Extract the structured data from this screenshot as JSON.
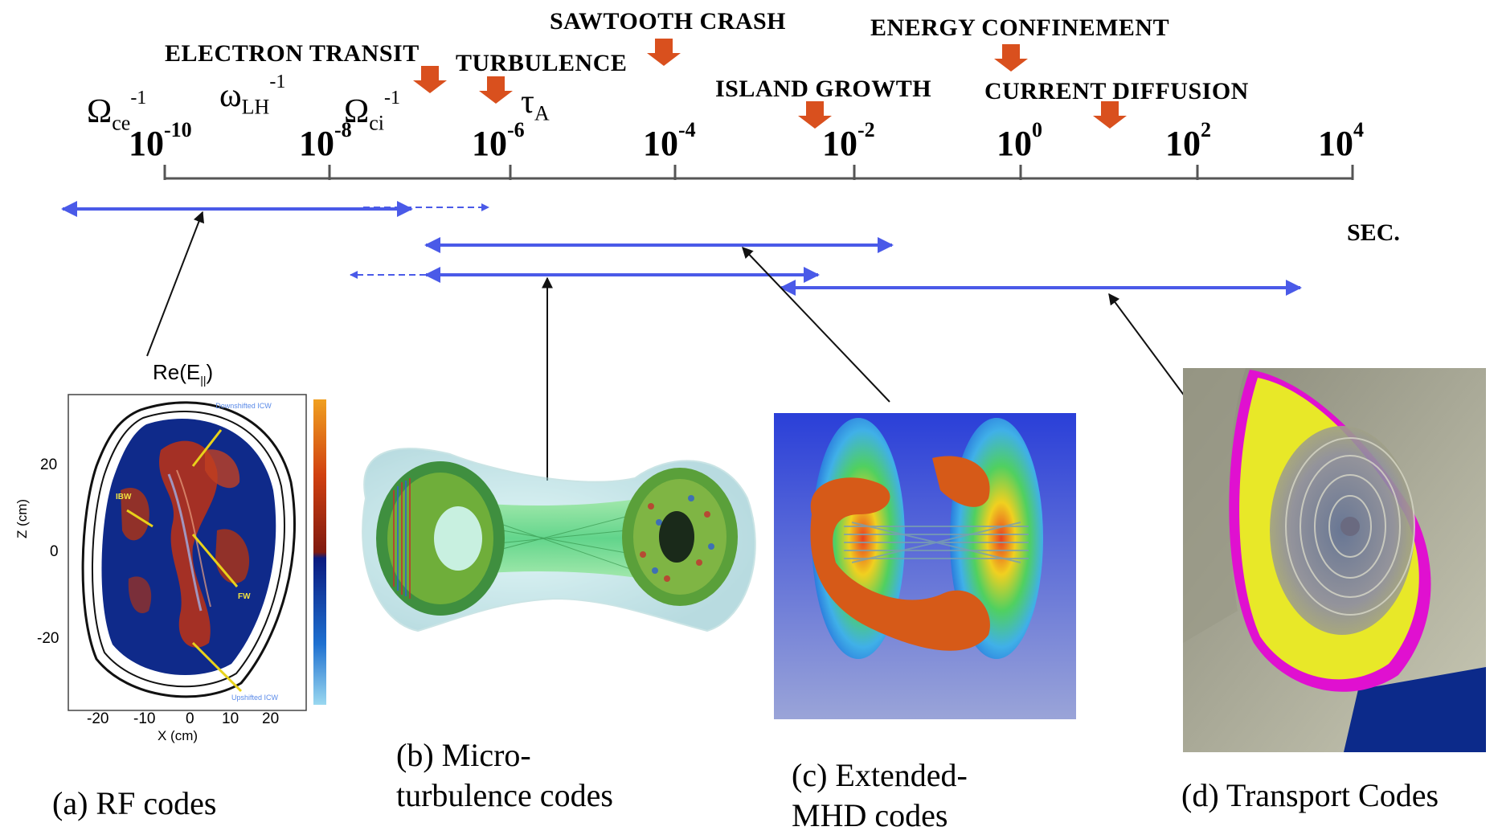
{
  "events": [
    {
      "id": "sawtooth",
      "label": "SAWTOOTH CRASH"
    },
    {
      "id": "energy",
      "label": "ENERGY CONFINEMENT"
    },
    {
      "id": "electron",
      "label": "ELECTRON TRANSIT"
    },
    {
      "id": "turbulence",
      "label": "TURBULENCE"
    },
    {
      "id": "island",
      "label": "ISLAND GROWTH"
    },
    {
      "id": "current",
      "label": "CURRENT DIFFUSION"
    }
  ],
  "symbols": {
    "omega_ce": {
      "base": "Ω",
      "sub": "ce",
      "sup": "-1"
    },
    "omega_lh": {
      "base": "ω",
      "sub": "LH",
      "sup": "-1"
    },
    "omega_ci": {
      "base": "Ω",
      "sub": "ci",
      "sup": "-1"
    },
    "tau_a": {
      "base": "τ",
      "sub": "A"
    }
  },
  "axis": {
    "ticks": [
      {
        "base": "10",
        "exp": "-10"
      },
      {
        "base": "10",
        "exp": "-8"
      },
      {
        "base": "10",
        "exp": "-6"
      },
      {
        "base": "10",
        "exp": "-4"
      },
      {
        "base": "10",
        "exp": "-2"
      },
      {
        "base": "10",
        "exp": "0"
      },
      {
        "base": "10",
        "exp": "2"
      },
      {
        "base": "10",
        "exp": "4"
      }
    ],
    "unit": "SEC."
  },
  "panels": {
    "a": {
      "title_base": "Re(E",
      "title_sub": "||",
      "title_end": ")",
      "ylabel": "Z (cm)",
      "xlabel": "X (cm)",
      "yticks": [
        "20",
        "0",
        "-20"
      ],
      "xticks": [
        "-20",
        "-10",
        "0",
        "10",
        "20"
      ],
      "annotations": [
        "Downshifted ICW",
        "IBW",
        "FW",
        "Upshifted ICW"
      ],
      "caption": "(a) RF codes"
    },
    "b": {
      "caption_line1": "(b) Micro-",
      "caption_line2": "turbulence codes"
    },
    "c": {
      "caption_line1": "(c) Extended-",
      "caption_line2": "MHD codes"
    },
    "d": {
      "caption": "(d) Transport Codes"
    }
  },
  "colors": {
    "range_arrow": "#4a5ae8",
    "event_arrow": "#d9501e",
    "axis": "#555555"
  }
}
